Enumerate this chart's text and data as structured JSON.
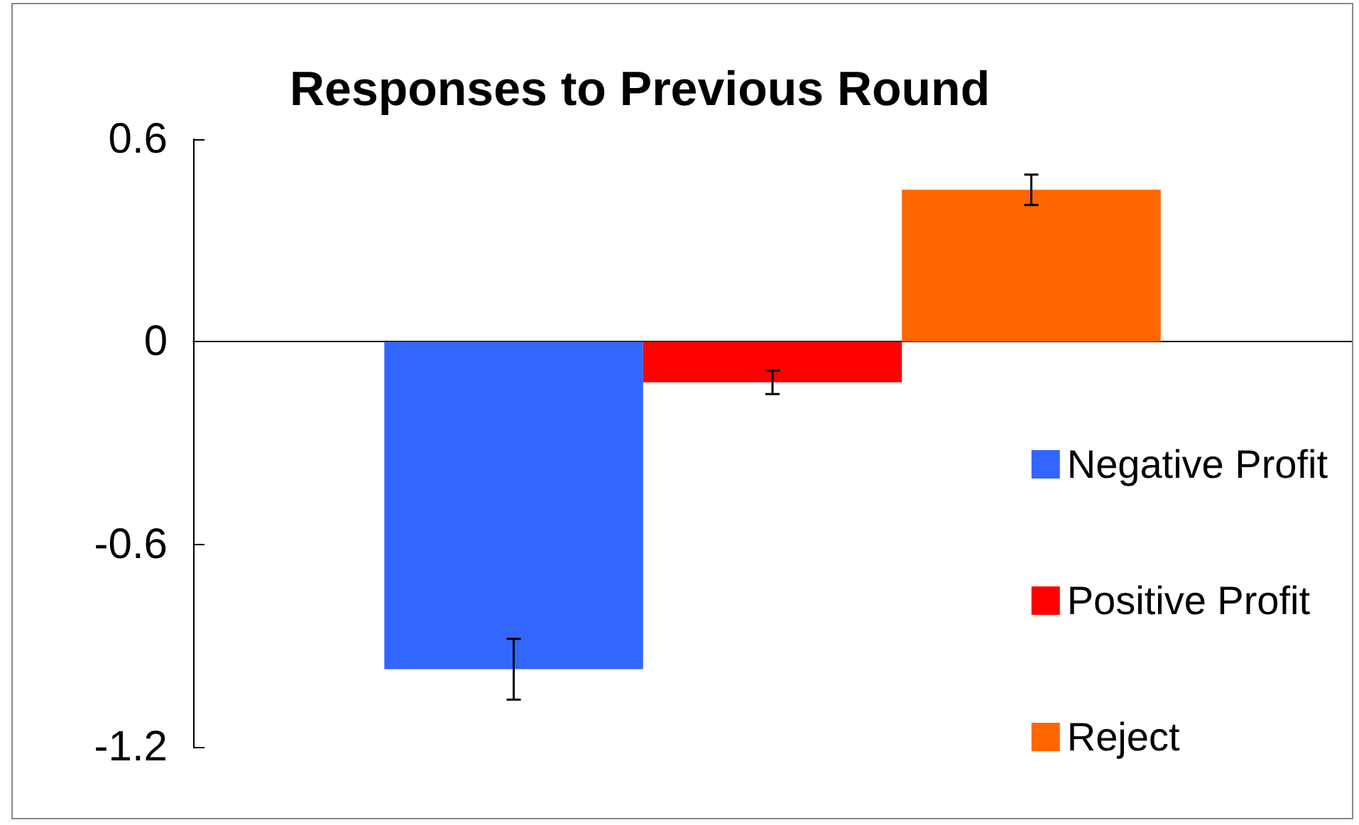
{
  "chart_data": {
    "type": "bar",
    "title": "Responses to Previous Round",
    "categories": [
      null
    ],
    "series": [
      {
        "name": "Negative Profit",
        "color": "#3366ff",
        "values": [
          -0.97
        ],
        "errors": [
          0.09
        ]
      },
      {
        "name": "Positive Profit",
        "color": "#ff0000",
        "values": [
          -0.12
        ],
        "errors": [
          0.035
        ]
      },
      {
        "name": "Reject",
        "color": "#ff6600",
        "values": [
          0.45
        ],
        "errors": [
          0.045
        ]
      }
    ],
    "ylim": [
      -1.2,
      0.6
    ],
    "yticks": [
      -1.2,
      -0.6,
      0,
      0.6
    ],
    "legend": "right"
  }
}
